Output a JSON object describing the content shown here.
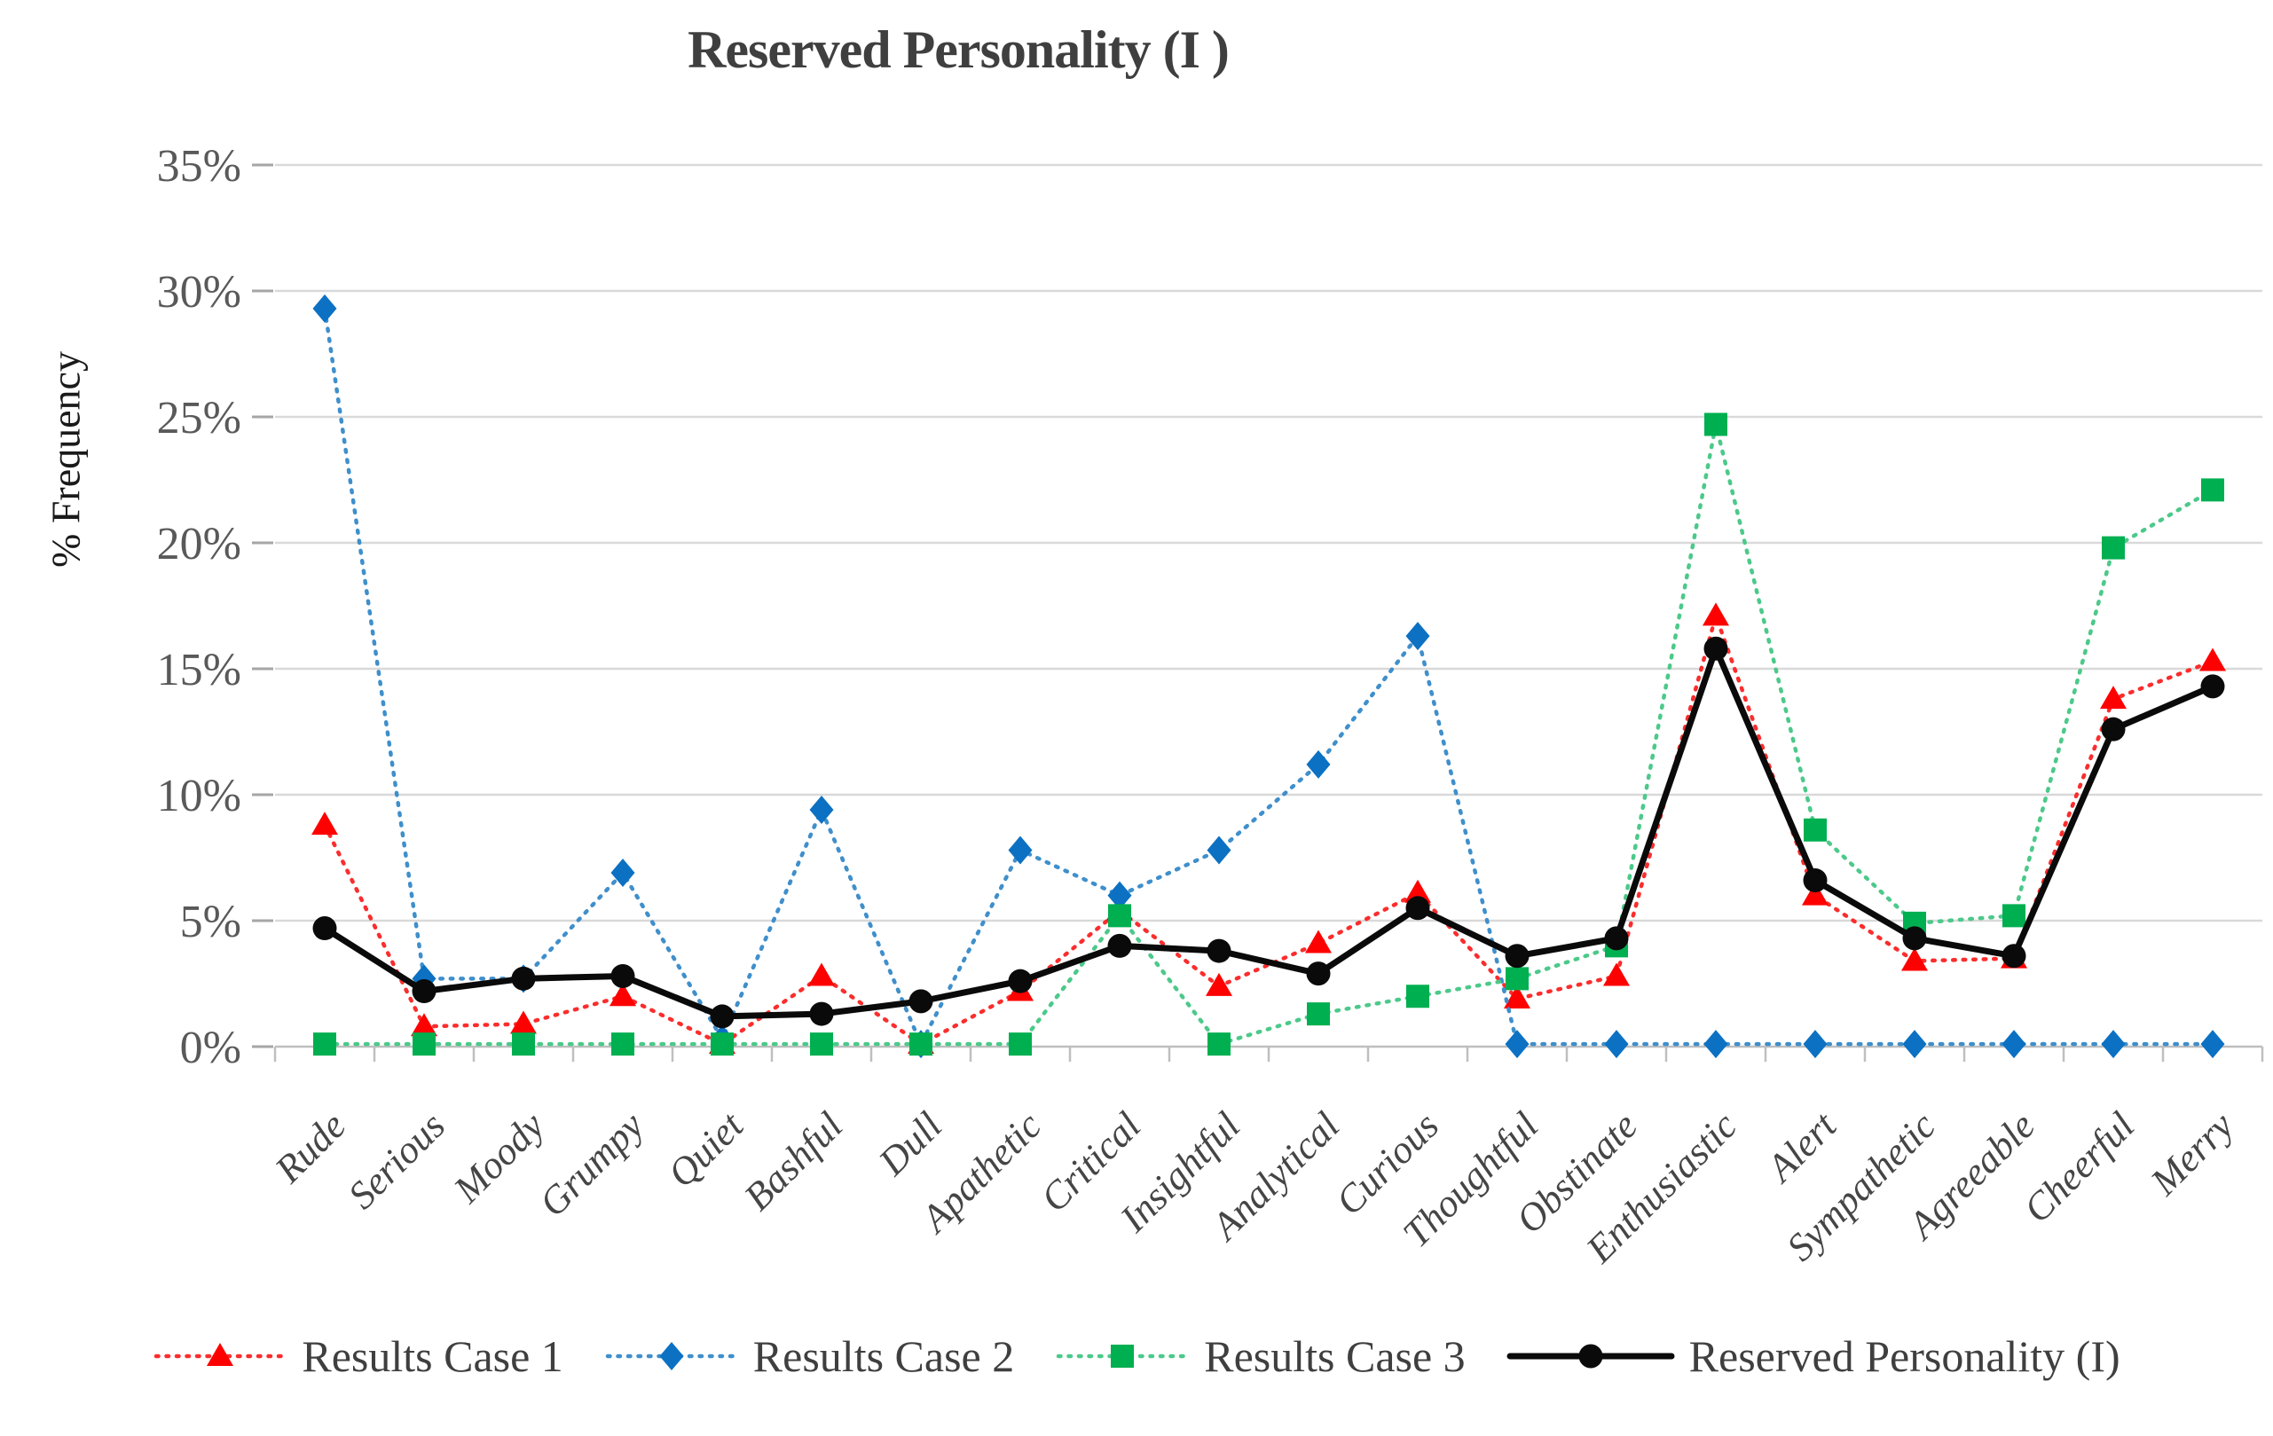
{
  "title": "Reserved Personality (I )",
  "y_axis": {
    "label": "% Frequency",
    "ticks": [
      "0%",
      "5%",
      "10%",
      "15%",
      "20%",
      "25%",
      "30%",
      "35%"
    ]
  },
  "legend": [
    {
      "label": "Results Case 1",
      "color": "#FE0000",
      "line_color": "#FB2D2D",
      "marker": "triangle",
      "line_style": "dotted"
    },
    {
      "label": "Results Case 2",
      "color": "#0C71C3",
      "line_color": "#3F8FCB",
      "marker": "diamond",
      "line_style": "dotted"
    },
    {
      "label": "Results Case 3",
      "color": "#00AF50",
      "line_color": "#4CC98A",
      "marker": "square",
      "line_style": "dotted"
    },
    {
      "label": "Reserved Personality (I)",
      "color": "#0A0A0A",
      "line_color": "#0A0A0A",
      "marker": "circle",
      "line_style": "solid"
    }
  ],
  "styles": {
    "grid_color": "#D9D9D9",
    "axis_color": "#BFBFBF",
    "tick_dash_color": "#A6A6A6",
    "tick_text_color": "#595959",
    "x_label_color": "#454545",
    "title_color": "#3F3F3F"
  },
  "chart_data": {
    "type": "line",
    "title": "Reserved Personality (I )",
    "xlabel": "",
    "ylabel": "% Frequency",
    "ylim": [
      0,
      35
    ],
    "y_tick_step": 5,
    "grid": true,
    "legend_position": "bottom",
    "categories": [
      "Rude",
      "Serious",
      "Moody",
      "Grumpy",
      "Quiet",
      "Bashful",
      "Dull",
      "Apathetic",
      "Critical",
      "Insightful",
      "Analytical",
      "Curious",
      "Thoughtful",
      "Obstinate",
      "Enthusiastic",
      "Alert",
      "Sympathetic",
      "Agreeable",
      "Cheerful",
      "Merry"
    ],
    "series": [
      {
        "name": "Results Case 1",
        "color": "#FE0000",
        "line_color": "#FB2D2D",
        "marker": "triangle",
        "line_style": "dotted",
        "values": [
          8.8,
          0.8,
          0.9,
          2.0,
          0.1,
          2.8,
          0.1,
          2.2,
          5.4,
          2.4,
          4.1,
          6.1,
          1.9,
          2.8,
          17.1,
          6.0,
          3.4,
          3.5,
          13.8,
          15.3
        ]
      },
      {
        "name": "Results Case 2",
        "color": "#0C71C3",
        "line_color": "#3F8FCB",
        "marker": "diamond",
        "line_style": "dotted",
        "values": [
          29.3,
          2.7,
          2.7,
          6.9,
          0.3,
          9.4,
          0.1,
          7.8,
          6.0,
          7.8,
          11.2,
          16.3,
          0.1,
          0.1,
          0.1,
          0.1,
          0.1,
          0.1,
          0.1,
          0.1
        ]
      },
      {
        "name": "Results Case 3",
        "color": "#00AF50",
        "line_color": "#4CC98A",
        "marker": "square",
        "line_style": "dotted",
        "values": [
          0.1,
          0.1,
          0.1,
          0.1,
          0.1,
          0.1,
          0.1,
          0.1,
          5.2,
          0.1,
          1.3,
          2.0,
          2.7,
          4.0,
          24.7,
          8.6,
          4.9,
          5.2,
          19.8,
          22.1
        ]
      },
      {
        "name": "Reserved Personality (I)",
        "color": "#0A0A0A",
        "line_color": "#0A0A0A",
        "marker": "circle",
        "line_style": "solid",
        "values": [
          4.7,
          2.2,
          2.7,
          2.8,
          1.2,
          1.3,
          1.8,
          2.6,
          4.0,
          3.8,
          2.9,
          5.5,
          3.6,
          4.3,
          15.8,
          6.6,
          4.3,
          3.6,
          12.6,
          14.3
        ]
      }
    ]
  }
}
